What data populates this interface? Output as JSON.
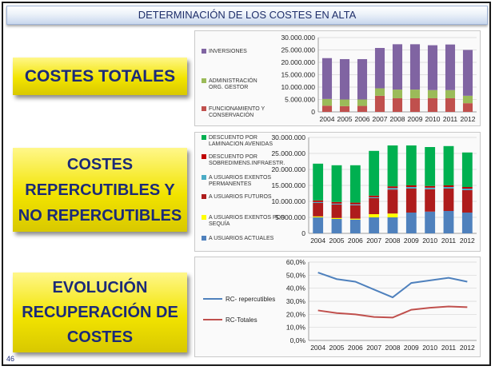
{
  "header": {
    "title": "DETERMINACIÓN DE LOS COSTES EN ALTA"
  },
  "labels": {
    "costes_totales": "COSTES TOTALES",
    "costes_repercutibles": "COSTES\nREPERCUTIBLES Y\nNO REPERCUTIBLES",
    "evolucion": "EVOLUCIÓN\nRECUPERACIÓN DE\nCOSTES"
  },
  "page_number": "46",
  "colors": {
    "inversiones": "#8064a2",
    "administracion": "#9bbb59",
    "funcionamiento": "#c0504d",
    "descuento_lam": "#00b050",
    "descuento_sob": "#c00000",
    "exentos_perm": "#4bacc6",
    "futuros": "#ae1c1c",
    "exentos_sequia": "#ffff00",
    "actuales": "#4f81bd",
    "rc_repercutibles": "#4f81bd",
    "rc_totales": "#c0504d"
  },
  "chart_data": [
    {
      "type": "bar",
      "stacked": true,
      "categories": [
        "2004",
        "2005",
        "2006",
        "2007",
        "2008",
        "2009",
        "2010",
        "2011",
        "2012"
      ],
      "ylim": [
        0,
        30000000
      ],
      "yticks": [
        "0",
        "5.000.000",
        "10.000.000",
        "15.000.000",
        "20.000.000",
        "25.000.000",
        "30.000.000"
      ],
      "series": [
        {
          "name": "FUNCIONAMIENTO Y\nCONSERVACIÓN",
          "color_key": "funcionamiento",
          "values": [
            2500000,
            2300000,
            2400000,
            6500000,
            5500000,
            5500000,
            5500000,
            5500000,
            3500000
          ]
        },
        {
          "name": "ADMINISTRACIÓN\nORG. GESTOR",
          "color_key": "administracion",
          "values": [
            2700000,
            2700000,
            2600000,
            3000000,
            3500000,
            3500000,
            3300000,
            3300000,
            3000000
          ]
        },
        {
          "name": "INVERSIONES",
          "color_key": "inversiones",
          "values": [
            16500000,
            16300000,
            16300000,
            16300000,
            18300000,
            18300000,
            18100000,
            18400000,
            18500000
          ]
        }
      ]
    },
    {
      "type": "bar",
      "stacked": true,
      "categories": [
        "2004",
        "2005",
        "2006",
        "2007",
        "2008",
        "2009",
        "2010",
        "2011",
        "2012"
      ],
      "ylim": [
        0,
        30000000
      ],
      "yticks": [
        "0",
        "5.000.000",
        "10.000.000",
        "15.000.000",
        "20.000.000",
        "25.000.000",
        "30.000.000"
      ],
      "series": [
        {
          "name": "A USUARIOS ACTUALES",
          "color_key": "actuales",
          "values": [
            5000000,
            4500000,
            4300000,
            5000000,
            5000000,
            6500000,
            6800000,
            7000000,
            6500000
          ]
        },
        {
          "name": "A USUARIOS EXENTOS POR\nSEQUÍA",
          "color_key": "exentos_sequia",
          "values": [
            300000,
            300000,
            300000,
            1000000,
            1200000,
            0,
            0,
            0,
            0
          ]
        },
        {
          "name": "A USUARIOS FUTUROS",
          "color_key": "futuros",
          "values": [
            4200000,
            4200000,
            4200000,
            5000000,
            7500000,
            7500000,
            7000000,
            7000000,
            7000000
          ]
        },
        {
          "name": "A USUARIOS EXENTOS\nPERMANENTES",
          "color_key": "exentos_perm",
          "values": [
            300000,
            300000,
            300000,
            300000,
            500000,
            500000,
            500000,
            500000,
            500000
          ]
        },
        {
          "name": "DESCUENTO POR\nSOBREDIMENS.INFRAESTR.",
          "color_key": "descuento_sob",
          "values": [
            500000,
            500000,
            500000,
            500000,
            500000,
            500000,
            500000,
            500000,
            500000
          ]
        },
        {
          "name": "DESCUENTO POR\nLAMINACION AVENIDAS",
          "color_key": "descuento_lam",
          "values": [
            11500000,
            11500000,
            11700000,
            14000000,
            12800000,
            12500000,
            12200000,
            12300000,
            10800000
          ]
        }
      ]
    },
    {
      "type": "line",
      "categories": [
        "2004",
        "2005",
        "2006",
        "2007",
        "2008",
        "2009",
        "2010",
        "2011",
        "2012"
      ],
      "ylim": [
        0,
        60
      ],
      "yticks": [
        "0,0%",
        "10,0%",
        "20,0%",
        "30,0%",
        "40,0%",
        "50,0%",
        "60,0%"
      ],
      "series": [
        {
          "name": "RC- repercutibles",
          "color_key": "rc_repercutibles",
          "values": [
            52,
            47,
            45,
            39,
            33,
            44,
            46,
            48,
            45
          ]
        },
        {
          "name": "RC-Totales",
          "color_key": "rc_totales",
          "values": [
            23,
            21,
            20,
            18,
            17.5,
            23.5,
            25,
            26,
            25.5
          ]
        }
      ]
    }
  ]
}
